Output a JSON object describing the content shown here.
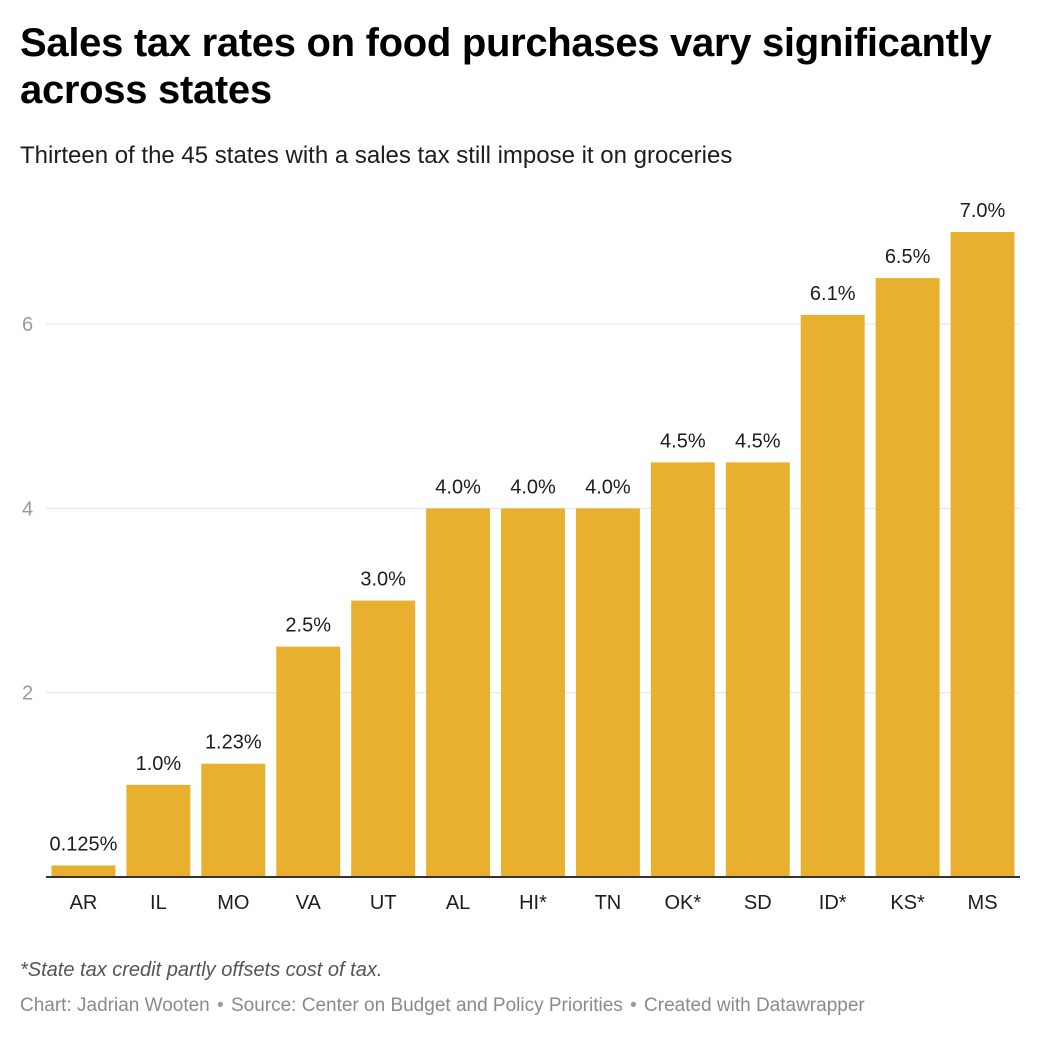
{
  "header": {
    "title": "Sales tax rates on food purchases vary significantly across states",
    "subtitle": "Thirteen of the 45 states with a sales tax still impose it on groceries"
  },
  "chart_data": {
    "type": "bar",
    "title": "Sales tax rates on food purchases vary significantly across states",
    "subtitle": "Thirteen of the 45 states with a sales tax still impose it on groceries",
    "categories": [
      "AR",
      "IL",
      "MO",
      "VA",
      "UT",
      "AL",
      "HI*",
      "TN",
      "OK*",
      "SD",
      "ID*",
      "KS*",
      "MS"
    ],
    "values": [
      0.125,
      1.0,
      1.23,
      2.5,
      3.0,
      4.0,
      4.0,
      4.0,
      4.5,
      4.5,
      6.1,
      6.5,
      7.0
    ],
    "value_labels": [
      "0.125%",
      "1.0%",
      "1.23%",
      "2.5%",
      "3.0%",
      "4.0%",
      "4.0%",
      "4.0%",
      "4.5%",
      "4.5%",
      "6.1%",
      "6.5%",
      "7.0%"
    ],
    "y_ticks": [
      2,
      4,
      6
    ],
    "ylim": [
      0,
      7.0
    ],
    "xlabel": "",
    "ylabel": "",
    "grid": true,
    "bar_color": "#e9b030"
  },
  "notes": "*State tax credit partly offsets cost of tax.",
  "footer": {
    "chart_credit": "Chart: Jadrian Wooten",
    "source": "Source: Center on Budget and Policy Priorities",
    "tool": "Created with Datawrapper",
    "separator": "•"
  }
}
